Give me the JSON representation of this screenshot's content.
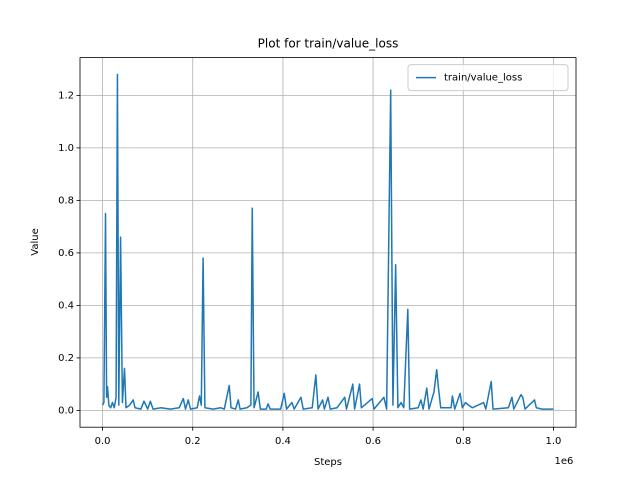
{
  "chart_data": {
    "type": "line",
    "title": "Plot for train/value_loss",
    "x_label": "Steps",
    "y_label": "Value",
    "x_offset_label": "1e6",
    "x": [
      0,
      3000,
      6600,
      9000,
      11000,
      14000,
      18000,
      22000,
      26000,
      30000,
      33000,
      36000,
      40000,
      44000,
      48700,
      52000,
      60000,
      68000,
      72000,
      85000,
      92000,
      100000,
      106000,
      112000,
      130000,
      150000,
      170000,
      179000,
      184000,
      190000,
      195000,
      210000,
      215000,
      219000,
      223000,
      227000,
      245000,
      262000,
      270000,
      281000,
      285000,
      295000,
      301000,
      305000,
      320000,
      329000,
      332000,
      336000,
      345000,
      350000,
      363000,
      367000,
      372000,
      395000,
      403000,
      408000,
      420000,
      425000,
      440000,
      445000,
      465000,
      473000,
      478000,
      488000,
      492000,
      500000,
      505000,
      520000,
      537000,
      541000,
      555000,
      559000,
      570000,
      574000,
      598000,
      602000,
      624000,
      630000,
      639000,
      644000,
      650000,
      655000,
      662000,
      668000,
      677000,
      681000,
      700000,
      706000,
      711000,
      719000,
      724000,
      735000,
      741000,
      745000,
      750000,
      773000,
      776000,
      781000,
      793000,
      798000,
      805000,
      812000,
      820000,
      845000,
      850000,
      862000,
      866000,
      900000,
      908000,
      912000,
      928000,
      932000,
      937000,
      952000,
      958000,
      962000,
      975000,
      1000000
    ],
    "series": [
      {
        "name": "train/value_loss",
        "color": "#1f77b4",
        "values": [
          0.02,
          0.03,
          0.75,
          0.05,
          0.09,
          0.02,
          0.01,
          0.03,
          0.01,
          0.05,
          1.28,
          0.02,
          0.66,
          0.03,
          0.16,
          0.01,
          0.02,
          0.04,
          0.01,
          0.005,
          0.035,
          0.005,
          0.035,
          0.005,
          0.01,
          0.005,
          0.01,
          0.045,
          0.005,
          0.04,
          0.005,
          0.01,
          0.055,
          0.02,
          0.58,
          0.01,
          0.005,
          0.01,
          0.005,
          0.095,
          0.01,
          0.005,
          0.04,
          0.005,
          0.01,
          0.02,
          0.77,
          0.01,
          0.07,
          0.005,
          0.005,
          0.025,
          0.005,
          0.005,
          0.065,
          0.005,
          0.03,
          0.005,
          0.05,
          0.005,
          0.01,
          0.135,
          0.005,
          0.04,
          0.005,
          0.05,
          0.005,
          0.01,
          0.05,
          0.005,
          0.1,
          0.005,
          0.1,
          0.01,
          0.045,
          0.005,
          0.05,
          0.005,
          1.22,
          0.02,
          0.555,
          0.01,
          0.03,
          0.01,
          0.385,
          0.005,
          0.01,
          0.04,
          0.005,
          0.085,
          0.005,
          0.07,
          0.155,
          0.085,
          0.01,
          0.01,
          0.055,
          0.005,
          0.065,
          0.01,
          0.03,
          0.02,
          0.01,
          0.03,
          0.005,
          0.11,
          0.005,
          0.01,
          0.05,
          0.005,
          0.06,
          0.05,
          0.005,
          0.03,
          0.04,
          0.01,
          0.005,
          0.005
        ]
      }
    ],
    "xlim": [
      -50000,
      1050000
    ],
    "xticks": [
      {
        "value": 0,
        "label": "0.0"
      },
      {
        "value": 200000,
        "label": "0.2"
      },
      {
        "value": 400000,
        "label": "0.4"
      },
      {
        "value": 600000,
        "label": "0.6"
      },
      {
        "value": 800000,
        "label": "0.8"
      },
      {
        "value": 1000000,
        "label": "1.0"
      }
    ],
    "ylim": [
      -0.064,
      1.344
    ],
    "yticks": [
      {
        "value": 0,
        "label": "0.0"
      },
      0.2,
      0.4,
      0.6,
      0.8,
      {
        "value": 1,
        "label": "1.0"
      },
      1.2
    ],
    "grid": true,
    "legend": "upper-right"
  }
}
